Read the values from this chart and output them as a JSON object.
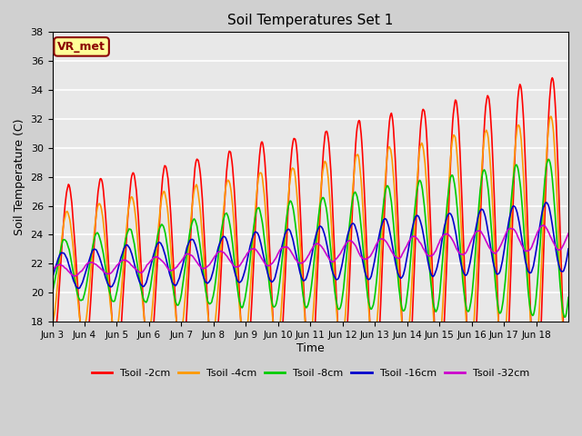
{
  "title": "Soil Temperatures Set 1",
  "xlabel": "Time",
  "ylabel": "Soil Temperature (C)",
  "ylim": [
    18,
    38
  ],
  "yticks": [
    18,
    20,
    22,
    24,
    26,
    28,
    30,
    32,
    34,
    36,
    38
  ],
  "background_color": "#e8e8e8",
  "grid_color": "#ffffff",
  "annotation_text": "VR_met",
  "annotation_bg": "#ffff99",
  "annotation_border": "#8b0000",
  "annotation_text_color": "#8b0000",
  "colors": {
    "Tsoil -2cm": "#ff0000",
    "Tsoil -4cm": "#ff9900",
    "Tsoil -8cm": "#00cc00",
    "Tsoil -16cm": "#0000cc",
    "Tsoil -32cm": "#cc00cc"
  },
  "legend_labels": [
    "Tsoil -2cm",
    "Tsoil -4cm",
    "Tsoil -8cm",
    "Tsoil -16cm",
    "Tsoil -32cm"
  ],
  "xtick_labels": [
    "Jun 3",
    "Jun 4",
    "Jun 5",
    "Jun 6",
    "Jun 7",
    "Jun 8",
    "Jun 9",
    "Jun 10",
    "Jun 11",
    "Jun 12",
    "Jun 13",
    "Jun 14",
    "Jun 15",
    "Jun 16",
    "Jun 17",
    "Jun 18"
  ],
  "n_days": 16,
  "pts_per_day": 48
}
